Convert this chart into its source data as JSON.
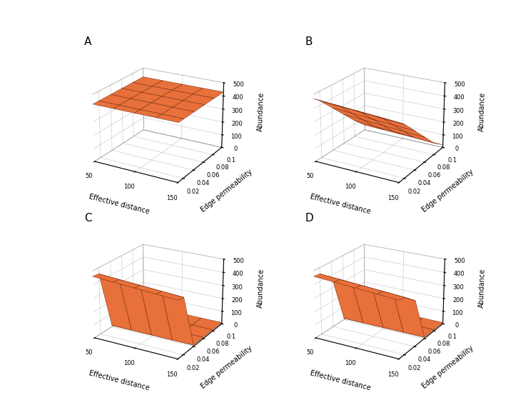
{
  "edge_permeability": [
    0.01,
    0.02,
    0.04,
    0.06,
    0.08,
    0.1
  ],
  "effective_distance": [
    50,
    75,
    100,
    125,
    150
  ],
  "surface_color": "#E8703A",
  "edge_color": "#5a1a00",
  "background_color": "#ffffff",
  "panel_labels": [
    "A",
    "B",
    "C",
    "D"
  ],
  "zlim": [
    0,
    500
  ],
  "zticks": [
    0,
    100,
    200,
    300,
    400,
    500
  ],
  "ed_ticks": [
    50,
    100,
    150
  ],
  "ep_ticks": [
    0.02,
    0.04,
    0.06,
    0.08,
    0.1
  ],
  "xlabel": "Effective distance",
  "ylabel": "Edge permeability",
  "zlabel": "Abundance",
  "elev": 22,
  "azim": -60,
  "A_data": [
    [
      430,
      430,
      430,
      430,
      430
    ],
    [
      430,
      430,
      430,
      430,
      430
    ],
    [
      430,
      430,
      430,
      430,
      430
    ],
    [
      430,
      430,
      430,
      430,
      430
    ],
    [
      430,
      430,
      430,
      430,
      430
    ],
    [
      430,
      430,
      430,
      430,
      430
    ]
  ],
  "B_data": [
    [
      470,
      460,
      450,
      440,
      430
    ],
    [
      430,
      420,
      410,
      400,
      390
    ],
    [
      330,
      320,
      310,
      300,
      290
    ],
    [
      230,
      220,
      210,
      200,
      190
    ],
    [
      130,
      120,
      110,
      100,
      90
    ],
    [
      40,
      35,
      30,
      25,
      20
    ]
  ],
  "C_data": [
    [
      460,
      450,
      440,
      430,
      420
    ],
    [
      455,
      445,
      435,
      425,
      415
    ],
    [
      10,
      10,
      10,
      10,
      10
    ],
    [
      10,
      10,
      10,
      10,
      10
    ],
    [
      10,
      10,
      10,
      10,
      10
    ],
    [
      10,
      10,
      10,
      10,
      10
    ]
  ],
  "D_data": [
    [
      460,
      450,
      440,
      430,
      420
    ],
    [
      455,
      445,
      435,
      425,
      415
    ],
    [
      380,
      370,
      360,
      350,
      340
    ],
    [
      10,
      10,
      10,
      10,
      10
    ],
    [
      10,
      10,
      10,
      10,
      10
    ],
    [
      10,
      10,
      10,
      10,
      10
    ]
  ]
}
